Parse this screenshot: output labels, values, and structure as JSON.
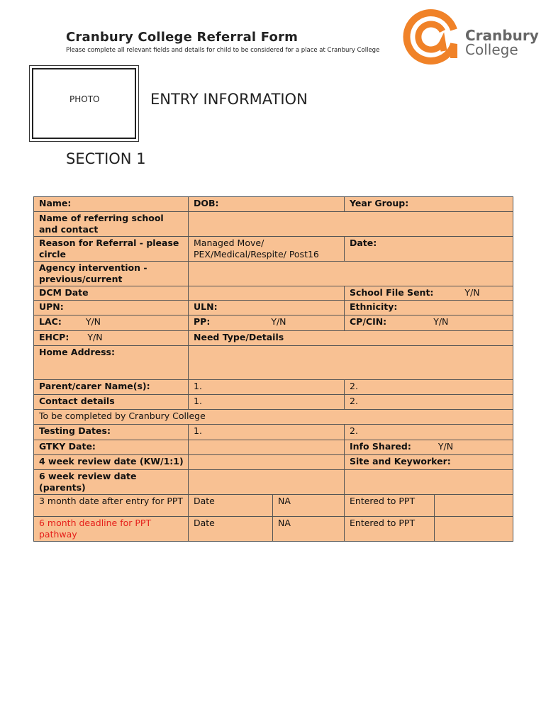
{
  "header": {
    "title": "Cranbury College Referral Form",
    "subtitle": "Please complete all relevant fields and details for child to be considered for a place at Cranbury College",
    "logo_text_1": "Cranbury",
    "logo_text_2": "College",
    "logo_color": "#f08228"
  },
  "photo_label": "PHOTO",
  "entry_heading": "ENTRY INFORMATION",
  "section_heading": "SECTION 1",
  "table": {
    "name": "Name:",
    "dob": "DOB:",
    "year_group": "Year Group:",
    "referring_school": "Name of referring school and contact",
    "reason": "Reason for Referral - please circle",
    "reason_options": "Managed Move/ PEX/Medical/Respite/ Post16",
    "date": "Date:",
    "agency": "Agency intervention - previous/current",
    "dcm": "DCM Date",
    "school_file": "School File Sent:",
    "yn": "Y/N",
    "upn": "UPN:",
    "uln": "ULN:",
    "ethnicity": "Ethnicity:",
    "lac": "LAC:",
    "pp": "PP:",
    "cp_cin": "CP/CIN:",
    "ehcp": "EHCP:",
    "need_type": "Need Type/Details",
    "home_address": "Home Address:",
    "parent": "Parent/carer Name(s):",
    "one": "1.",
    "two": "2.",
    "contact": "Contact details",
    "college_section": "To be completed by Cranbury College",
    "testing": "Testing Dates:",
    "gtky": "GTKY Date:",
    "info_shared": "Info Shared:",
    "review4": "4 week review date (KW/1:1)",
    "site_keyworker": "Site and Keyworker:",
    "review6": "6 week review date (parents)",
    "month3": "3 month date after entry for PPT",
    "date_label": "Date",
    "na": "NA",
    "entered_ppt": "Entered to PPT",
    "month6": "6 month deadline for PPT pathway"
  },
  "colors": {
    "table_fill": "#f8c193",
    "deadline_red": "#e5201b"
  }
}
